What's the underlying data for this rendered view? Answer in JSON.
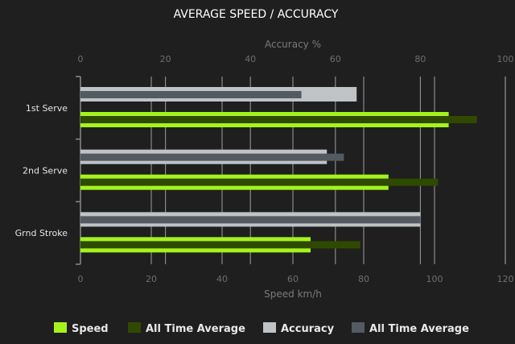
{
  "chart_data": {
    "type": "bar",
    "orientation": "horizontal",
    "title": "AVERAGE SPEED / ACCURACY",
    "categories": [
      "1st Serve",
      "2nd Serve",
      "Grnd Stroke"
    ],
    "speed_axis": {
      "label": "Speed km/h",
      "position": "bottom",
      "range": [
        0,
        120
      ],
      "ticks": [
        0,
        20,
        40,
        60,
        80,
        100,
        120
      ]
    },
    "accuracy_axis": {
      "label": "Accuracy %",
      "position": "top",
      "range": [
        0,
        100
      ],
      "ticks": [
        0,
        20,
        40,
        60,
        80,
        100
      ]
    },
    "series": [
      {
        "name": "Speed",
        "axis": "speed",
        "color": "#a4f41c",
        "values": [
          104,
          87,
          65
        ]
      },
      {
        "name": "All Time Average",
        "axis": "speed",
        "color": "#2f4a00",
        "values": [
          112,
          101,
          79
        ]
      },
      {
        "name": "Accuracy",
        "axis": "accuracy",
        "color": "#bfc3c6",
        "values": [
          65,
          58,
          80
        ]
      },
      {
        "name": "All Time Average",
        "axis": "accuracy",
        "color": "#545a62",
        "values": [
          52,
          62,
          80
        ]
      }
    ],
    "grid": true,
    "legend": "bottom"
  }
}
